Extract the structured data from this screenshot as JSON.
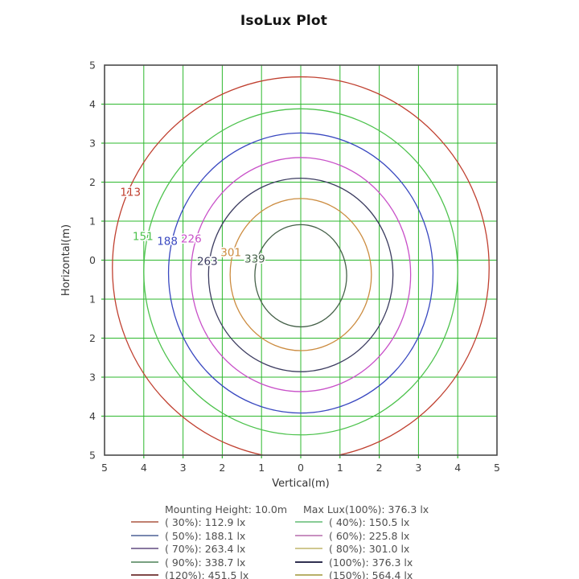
{
  "title": "IsoLux Plot",
  "chart_data": {
    "type": "contour",
    "title": "IsoLux Plot",
    "xlabel": "Vertical(m)",
    "ylabel": "Horizontal(m)",
    "xlim": [
      -5,
      5
    ],
    "ylim": [
      -5,
      5
    ],
    "grid": true,
    "grid_color": "#2eb82e",
    "axis_color": "#4a4a4a",
    "legend_position": "bottom",
    "x_ticks": [
      "5",
      "4",
      "3",
      "2",
      "1",
      "0",
      "1",
      "2",
      "3",
      "4",
      "5"
    ],
    "y_ticks": [
      "5",
      "4",
      "3",
      "2",
      "1",
      "0",
      "1",
      "2",
      "3",
      "4",
      "5"
    ],
    "mounting_height_m": 10.0,
    "max_lux_100pct": 376.3,
    "contours": [
      {
        "percent": "30%",
        "lux": 112.9,
        "label": "113",
        "color": "#c04030",
        "cx": 0,
        "cy": -0.2,
        "rx": 4.8,
        "ry": 4.9,
        "label_x": -4.34,
        "label_y": 1.74
      },
      {
        "percent": "40%",
        "lux": 150.5,
        "label": "151",
        "color": "#4cc24c",
        "cx": 0,
        "cy": -0.3,
        "rx": 4.0,
        "ry": 4.18,
        "label_x": -4.02,
        "label_y": 0.61
      },
      {
        "percent": "50%",
        "lux": 188.1,
        "label": "188",
        "color": "#3948c0",
        "cx": 0,
        "cy": -0.33,
        "rx": 3.37,
        "ry": 3.59,
        "label_x": -3.4,
        "label_y": 0.48
      },
      {
        "percent": "60%",
        "lux": 225.8,
        "label": "226",
        "color": "#c850c8",
        "cx": 0,
        "cy": -0.37,
        "rx": 2.8,
        "ry": 3.0,
        "label_x": -2.79,
        "label_y": 0.55
      },
      {
        "percent": "70%",
        "lux": 263.4,
        "label": "263",
        "color": "#3c3c60",
        "cx": 0,
        "cy": -0.38,
        "rx": 2.35,
        "ry": 2.48,
        "label_x": -2.38,
        "label_y": -0.03
      },
      {
        "percent": "80%",
        "lux": 301.0,
        "label": "301",
        "color": "#cc8c40",
        "cx": 0,
        "cy": -0.37,
        "rx": 1.8,
        "ry": 1.95,
        "label_x": -1.78,
        "label_y": 0.2
      },
      {
        "percent": "90%",
        "lux": 338.7,
        "label": "339",
        "color": "#446048",
        "cx": 0,
        "cy": -0.4,
        "rx": 1.17,
        "ry": 1.31,
        "label_x": -1.17,
        "label_y": 0.03
      }
    ]
  },
  "legend": {
    "header_left": "Mounting Height: 10.0m",
    "header_right": "Max Lux(100%): 376.3 lx",
    "left_items": [
      {
        "label": "( 30%): 112.9 lx",
        "color": "#c08070"
      },
      {
        "label": "( 50%): 188.1 lx",
        "color": "#7888b0"
      },
      {
        "label": "( 70%): 263.4 lx",
        "color": "#8878a0"
      },
      {
        "label": "( 90%): 338.7 lx",
        "color": "#78a080"
      },
      {
        "label": "(120%): 451.5 lx",
        "color": "#804848"
      }
    ],
    "right_items": [
      {
        "label": "( 40%): 150.5 lx",
        "color": "#88cc96"
      },
      {
        "label": "( 60%): 225.8 lx",
        "color": "#c890c0"
      },
      {
        "label": "( 80%): 301.0 lx",
        "color": "#d0c890"
      },
      {
        "label": "(100%): 376.3 lx",
        "color": "#303050"
      },
      {
        "label": "(150%): 564.4 lx",
        "color": "#b8b068"
      }
    ]
  }
}
